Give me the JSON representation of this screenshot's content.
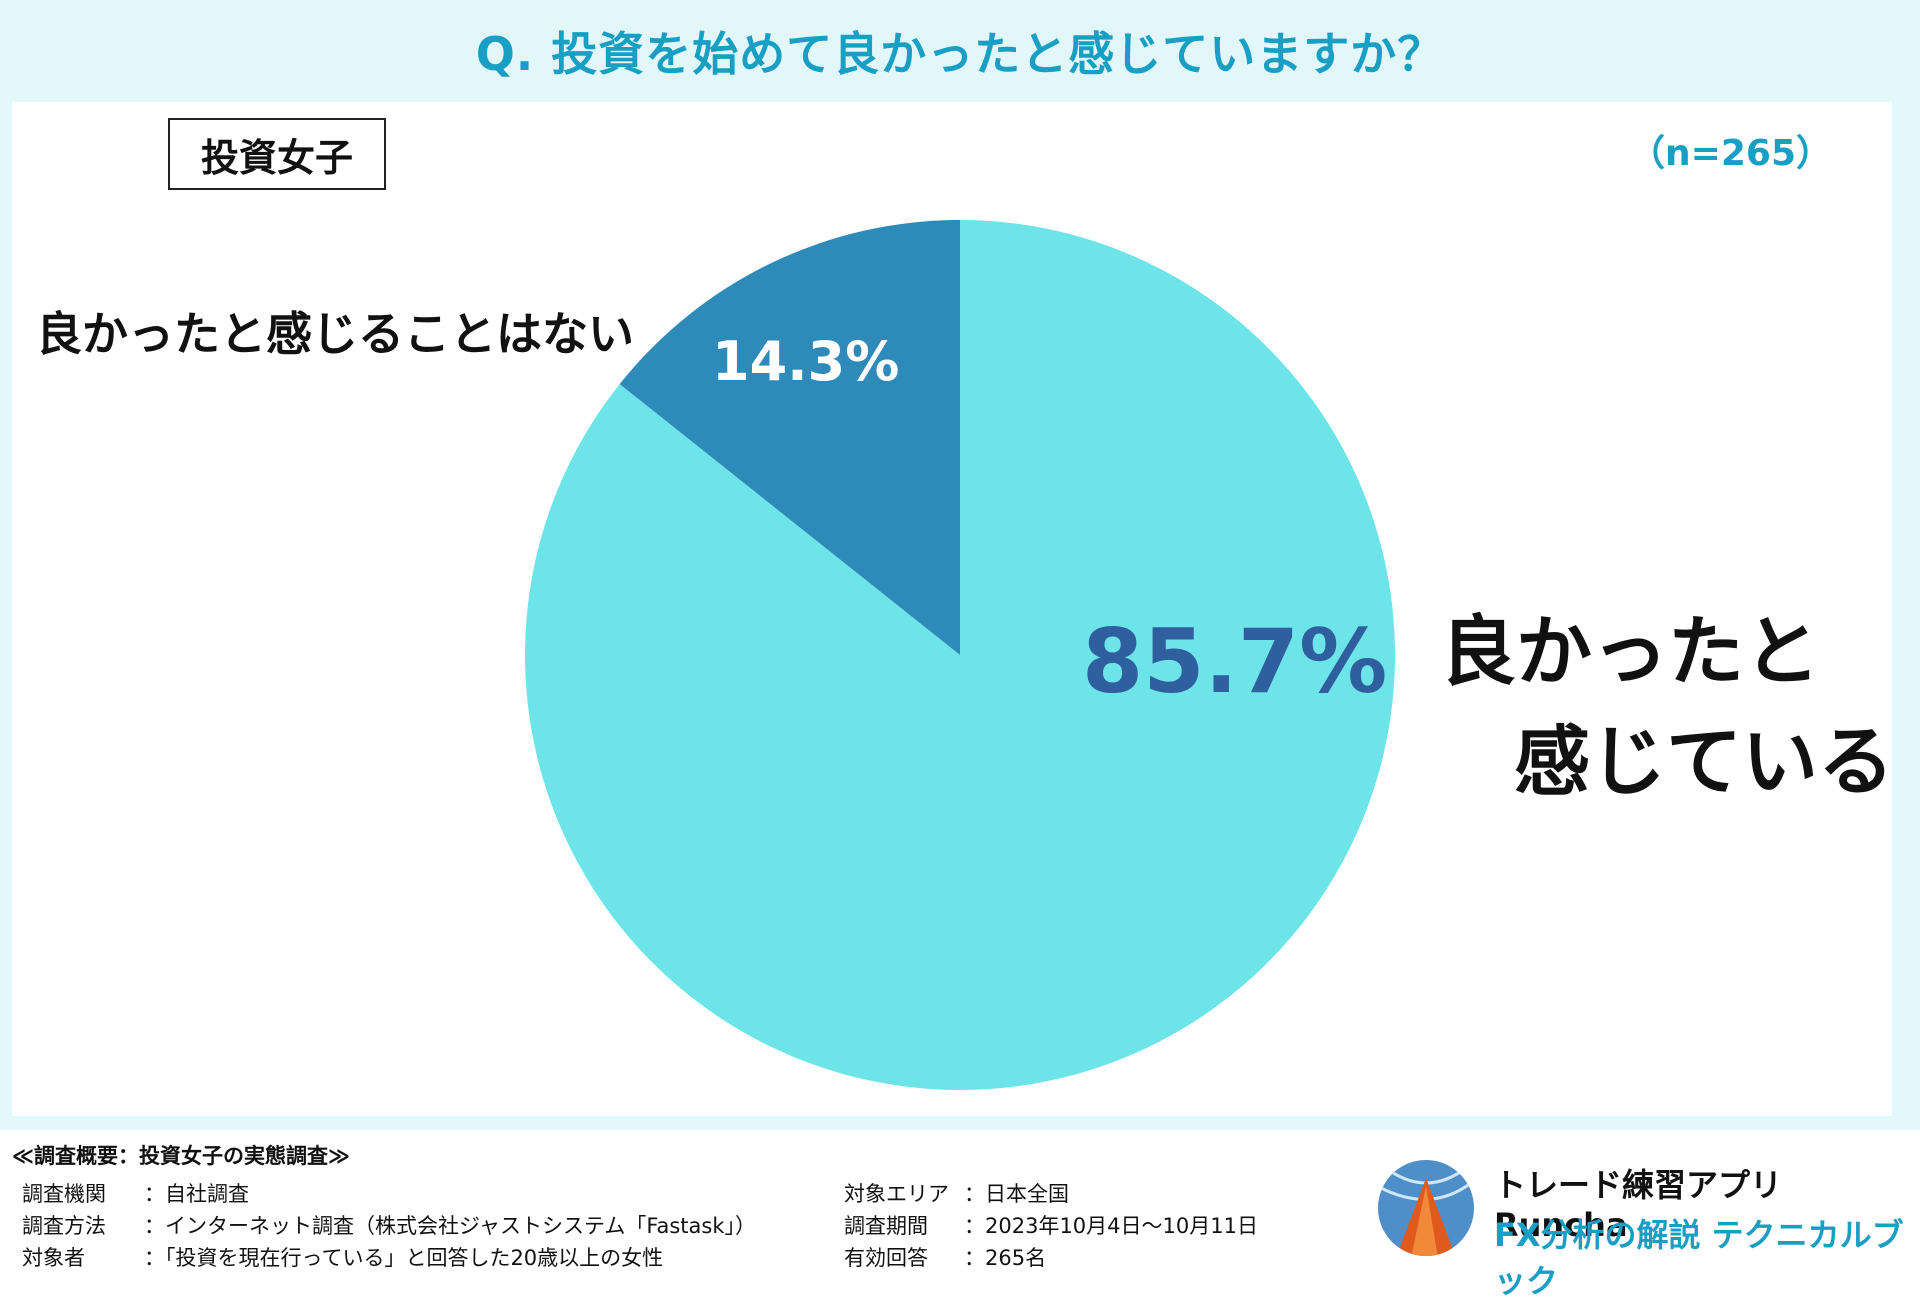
{
  "header": {
    "question": "Q. 投資を始めて良かったと感じていますか？"
  },
  "panel": {
    "group": "投資女子",
    "sample": "（n=265）"
  },
  "chart_data": {
    "type": "pie",
    "categories": [
      "良かったと感じている",
      "良かったと感じることはない"
    ],
    "values": [
      85.7,
      14.3
    ],
    "value_labels": [
      "85.7%",
      "14.3%"
    ],
    "category_label_lines": [
      [
        "良かったと",
        "感じている"
      ],
      [
        "良かったと感じることはない"
      ]
    ],
    "colors": [
      "#6ce4e8",
      "#2e8bb9"
    ],
    "title": "",
    "legend": "none"
  },
  "footer": {
    "title": "≪調査概要：投資女子の実態調査≫",
    "rows_left": [
      {
        "key": "調査機関",
        "value": "：自社調査"
      },
      {
        "key": "調査方法",
        "value": "：インターネット調査（株式会社ジャストシステム「Fastask」）"
      },
      {
        "key": "対象者",
        "value": "：「投資を現在行っている」と回答した20歳以上の女性"
      }
    ],
    "rows_right": [
      {
        "key": "対象エリア",
        "value": "：日本全国"
      },
      {
        "key": "調査期間",
        "value": "：2023年10月4日～10月11日"
      },
      {
        "key": "有効回答",
        "value": "：265名"
      }
    ],
    "brand_line1": "トレード練習アプリ Runcha",
    "brand_line2": "FX分析の解説 テクニカルブック",
    "logo_icon": "runcha-logo-icon"
  }
}
